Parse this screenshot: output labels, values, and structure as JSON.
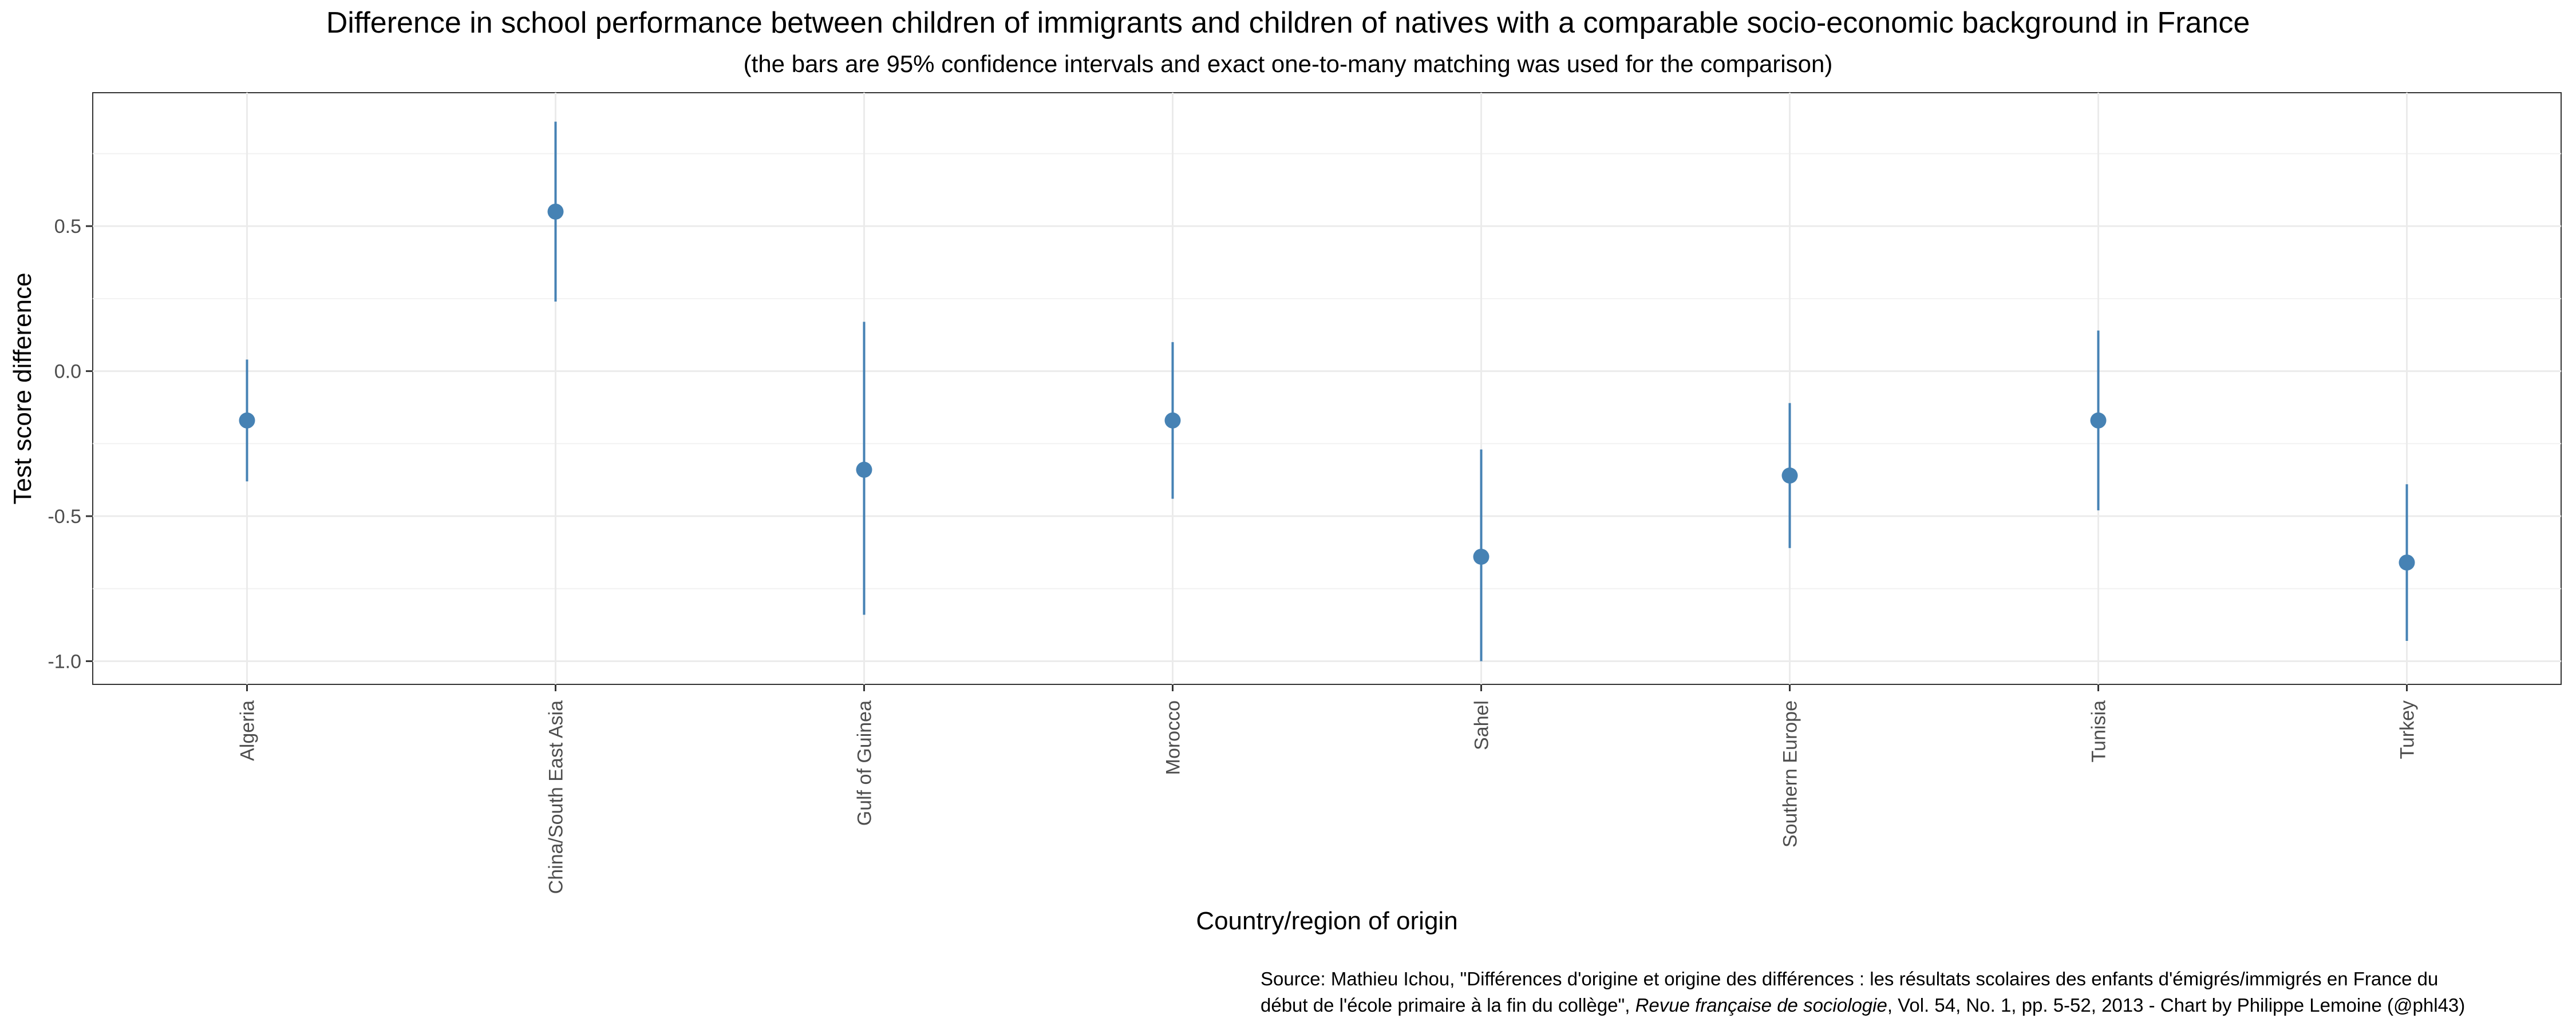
{
  "chart_data": {
    "type": "scatter",
    "title": "Difference in school performance between children of immigrants and children of natives with a comparable socio-economic background in France",
    "subtitle": "(the bars are 95% confidence intervals and exact one-to-many matching was used for the comparison)",
    "xlabel": "Country/region of origin",
    "ylabel": "Test score difference",
    "ylim": [
      -1.08,
      0.96
    ],
    "yticks": [
      0.5,
      0.0,
      -0.5,
      -1.0
    ],
    "ytick_labels": [
      "0.5",
      "0.0",
      "-0.5",
      "-1.0"
    ],
    "grid": true,
    "color": "#4682b4",
    "categories": [
      "Algeria",
      "China/South East Asia",
      "Gulf of Guinea",
      "Morocco",
      "Sahel",
      "Southern Europe",
      "Tunisia",
      "Turkey"
    ],
    "values": [
      -0.17,
      0.55,
      -0.34,
      -0.17,
      -0.64,
      -0.36,
      -0.17,
      -0.66
    ],
    "lower": [
      -0.38,
      0.24,
      -0.84,
      -0.44,
      -1.0,
      -0.61,
      -0.48,
      -0.93
    ],
    "upper": [
      0.04,
      0.86,
      0.17,
      0.1,
      -0.27,
      -0.11,
      0.14,
      -0.39
    ]
  },
  "caption": {
    "line1": "Source: Mathieu Ichou, \"Différences d'origine et origine des différences : les résultats scolaires des enfants d'émigrés/immigrés en France du",
    "line2_pre": "début de l'école primaire à la fin du collège\", ",
    "line2_italic": "Revue française de sociologie",
    "line2_post": ", Vol. 54, No. 1, pp. 5-52, 2013 - Chart by Philippe Lemoine (@phl43)"
  }
}
